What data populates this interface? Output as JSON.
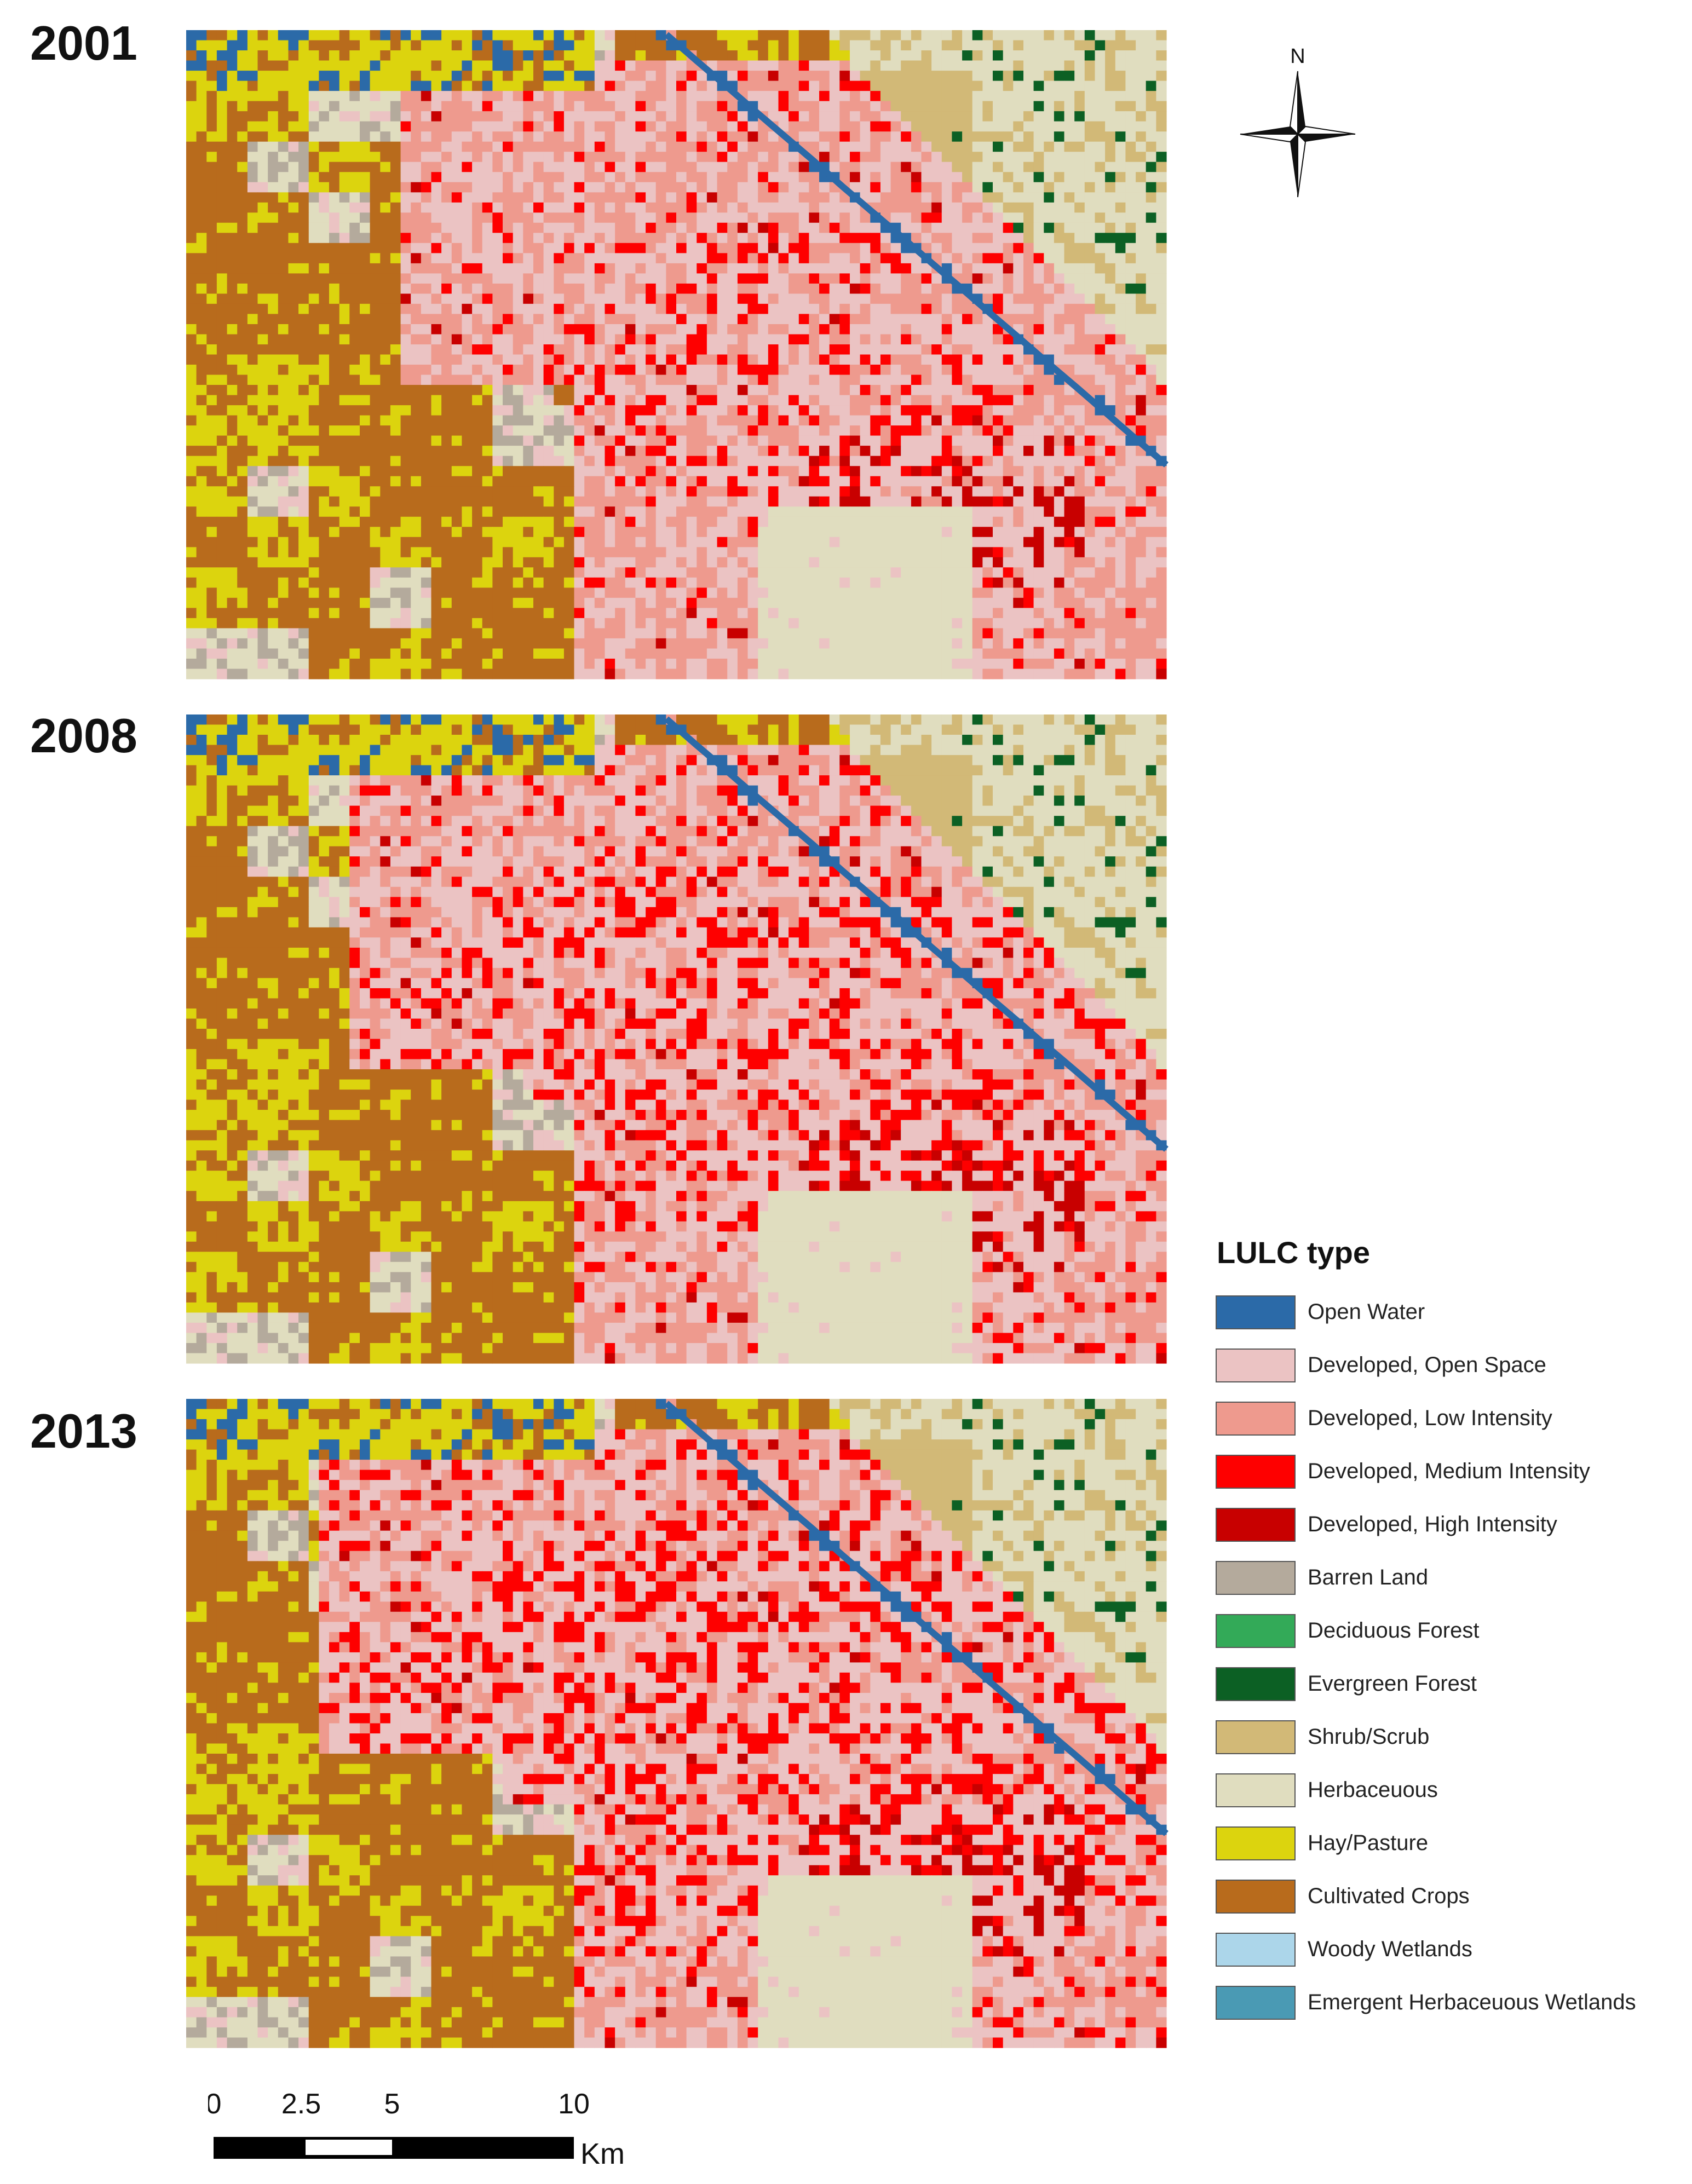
{
  "panels": [
    {
      "year": "2001"
    },
    {
      "year": "2008"
    },
    {
      "year": "2013"
    }
  ],
  "compass": {
    "north_label": "N"
  },
  "legend": {
    "title": "LULC type",
    "items": [
      {
        "label": "Open Water",
        "color": "#2b6aa8"
      },
      {
        "label": "Developed, Open Space",
        "color": "#ebc3c3"
      },
      {
        "label": "Developed, Low Intensity",
        "color": "#ee9a8e"
      },
      {
        "label": "Developed, Medium Intensity",
        "color": "#fe0000"
      },
      {
        "label": "Developed, High Intensity",
        "color": "#c80000"
      },
      {
        "label": "Barren Land",
        "color": "#b4aa9c"
      },
      {
        "label": "Deciduous Forest",
        "color": "#33aa58"
      },
      {
        "label": "Evergreen Forest",
        "color": "#0c6024"
      },
      {
        "label": "Shrub/Scrub",
        "color": "#d2b977"
      },
      {
        "label": "Herbaceuous",
        "color": "#e0ddbf"
      },
      {
        "label": "Hay/Pasture",
        "color": "#dcd40e"
      },
      {
        "label": "Cultivated Crops",
        "color": "#b86b1c"
      },
      {
        "label": "Woody Wetlands",
        "color": "#acd6ea"
      },
      {
        "label": "Emergent Herbaceuous Wetlands",
        "color": "#4a9ab4"
      }
    ]
  },
  "scale_bar": {
    "ticks": [
      "0",
      "2.5",
      "5",
      "10"
    ],
    "unit": "Km"
  }
}
